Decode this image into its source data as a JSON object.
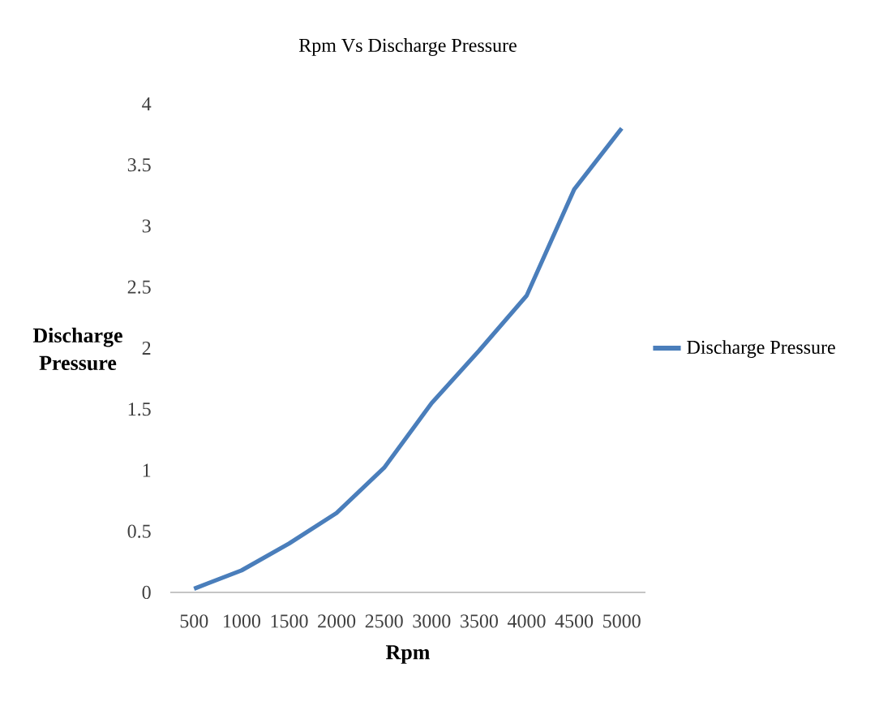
{
  "chart_data": {
    "type": "line",
    "title": "Rpm Vs Discharge Pressure",
    "xlabel": "Rpm",
    "ylabel": "Discharge Pressure",
    "categories": [
      "500",
      "1000",
      "1500",
      "2000",
      "2500",
      "3000",
      "3500",
      "4000",
      "4500",
      "5000"
    ],
    "series": [
      {
        "name": "Discharge Pressure",
        "color": "#4a7ebb",
        "values": [
          0.03,
          0.18,
          0.4,
          0.65,
          1.02,
          1.55,
          1.98,
          2.43,
          3.3,
          3.8
        ]
      }
    ],
    "ylim": [
      0,
      4
    ],
    "yticks": [
      0,
      0.5,
      1,
      1.5,
      2,
      2.5,
      3,
      3.5,
      4
    ],
    "grid": false,
    "legend": "right",
    "marker": "none",
    "line_style": "solid"
  }
}
